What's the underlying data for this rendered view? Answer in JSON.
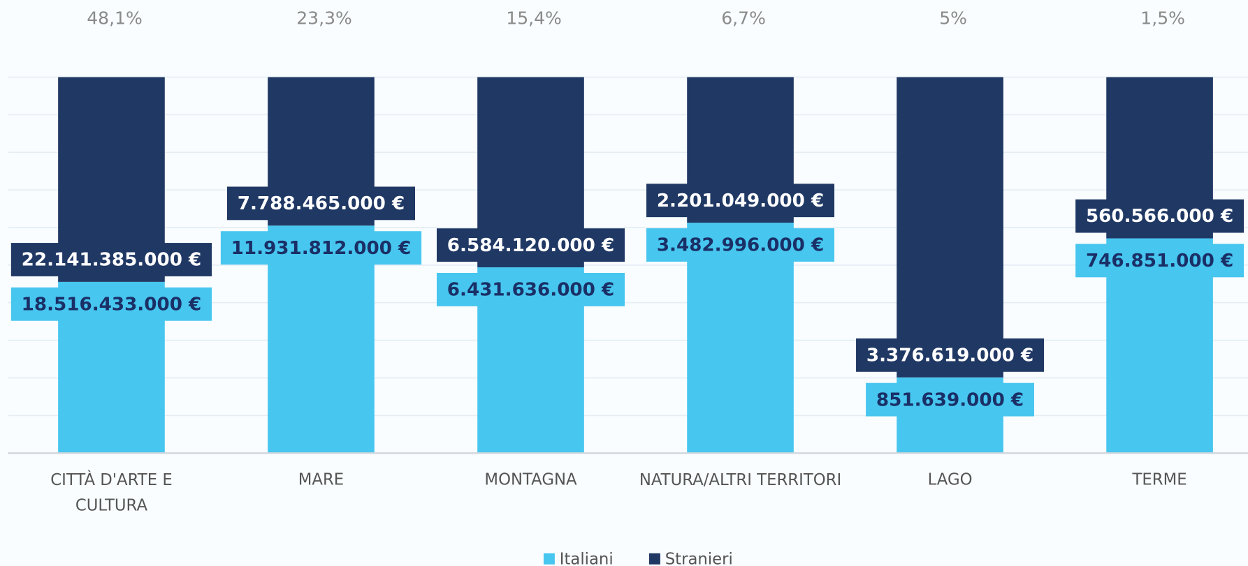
{
  "chart_data": {
    "type": "stacked_percent_bar",
    "categories": [
      "CITTÀ D'ARTE E CULTURA",
      "MARE",
      "MONTAGNA",
      "NATURA/ALTRI TERRITORI",
      "LAGO",
      "TERME"
    ],
    "top_labels": [
      "48,1%",
      "23,3%",
      "15,4%",
      "6,7%",
      "5%",
      "1,5%"
    ],
    "series": [
      {
        "name": "Italiani",
        "color": "#47c6ef",
        "label_color": "#1a2f66",
        "values": [
          18516433000,
          11931812000,
          6431636000,
          3482996000,
          851639000,
          746851000
        ],
        "value_labels": [
          "18.516.433.000 €",
          "11.931.812.000 €",
          "6.431.636.000 €",
          "3.482.996.000 €",
          "851.639.000 €",
          "746.851.000 €"
        ]
      },
      {
        "name": "Stranieri",
        "color": "#203864",
        "label_color": "#ffffff",
        "values": [
          22141385000,
          7788465000,
          6584120000,
          2201049000,
          3376619000,
          560566000
        ],
        "value_labels": [
          "22.141.385.000 €",
          "7.788.465.000 €",
          "6.584.120.000 €",
          "2.201.049.000 €",
          "3.376.619.000 €",
          "560.566.000 €"
        ]
      }
    ],
    "legend": "bottom"
  }
}
